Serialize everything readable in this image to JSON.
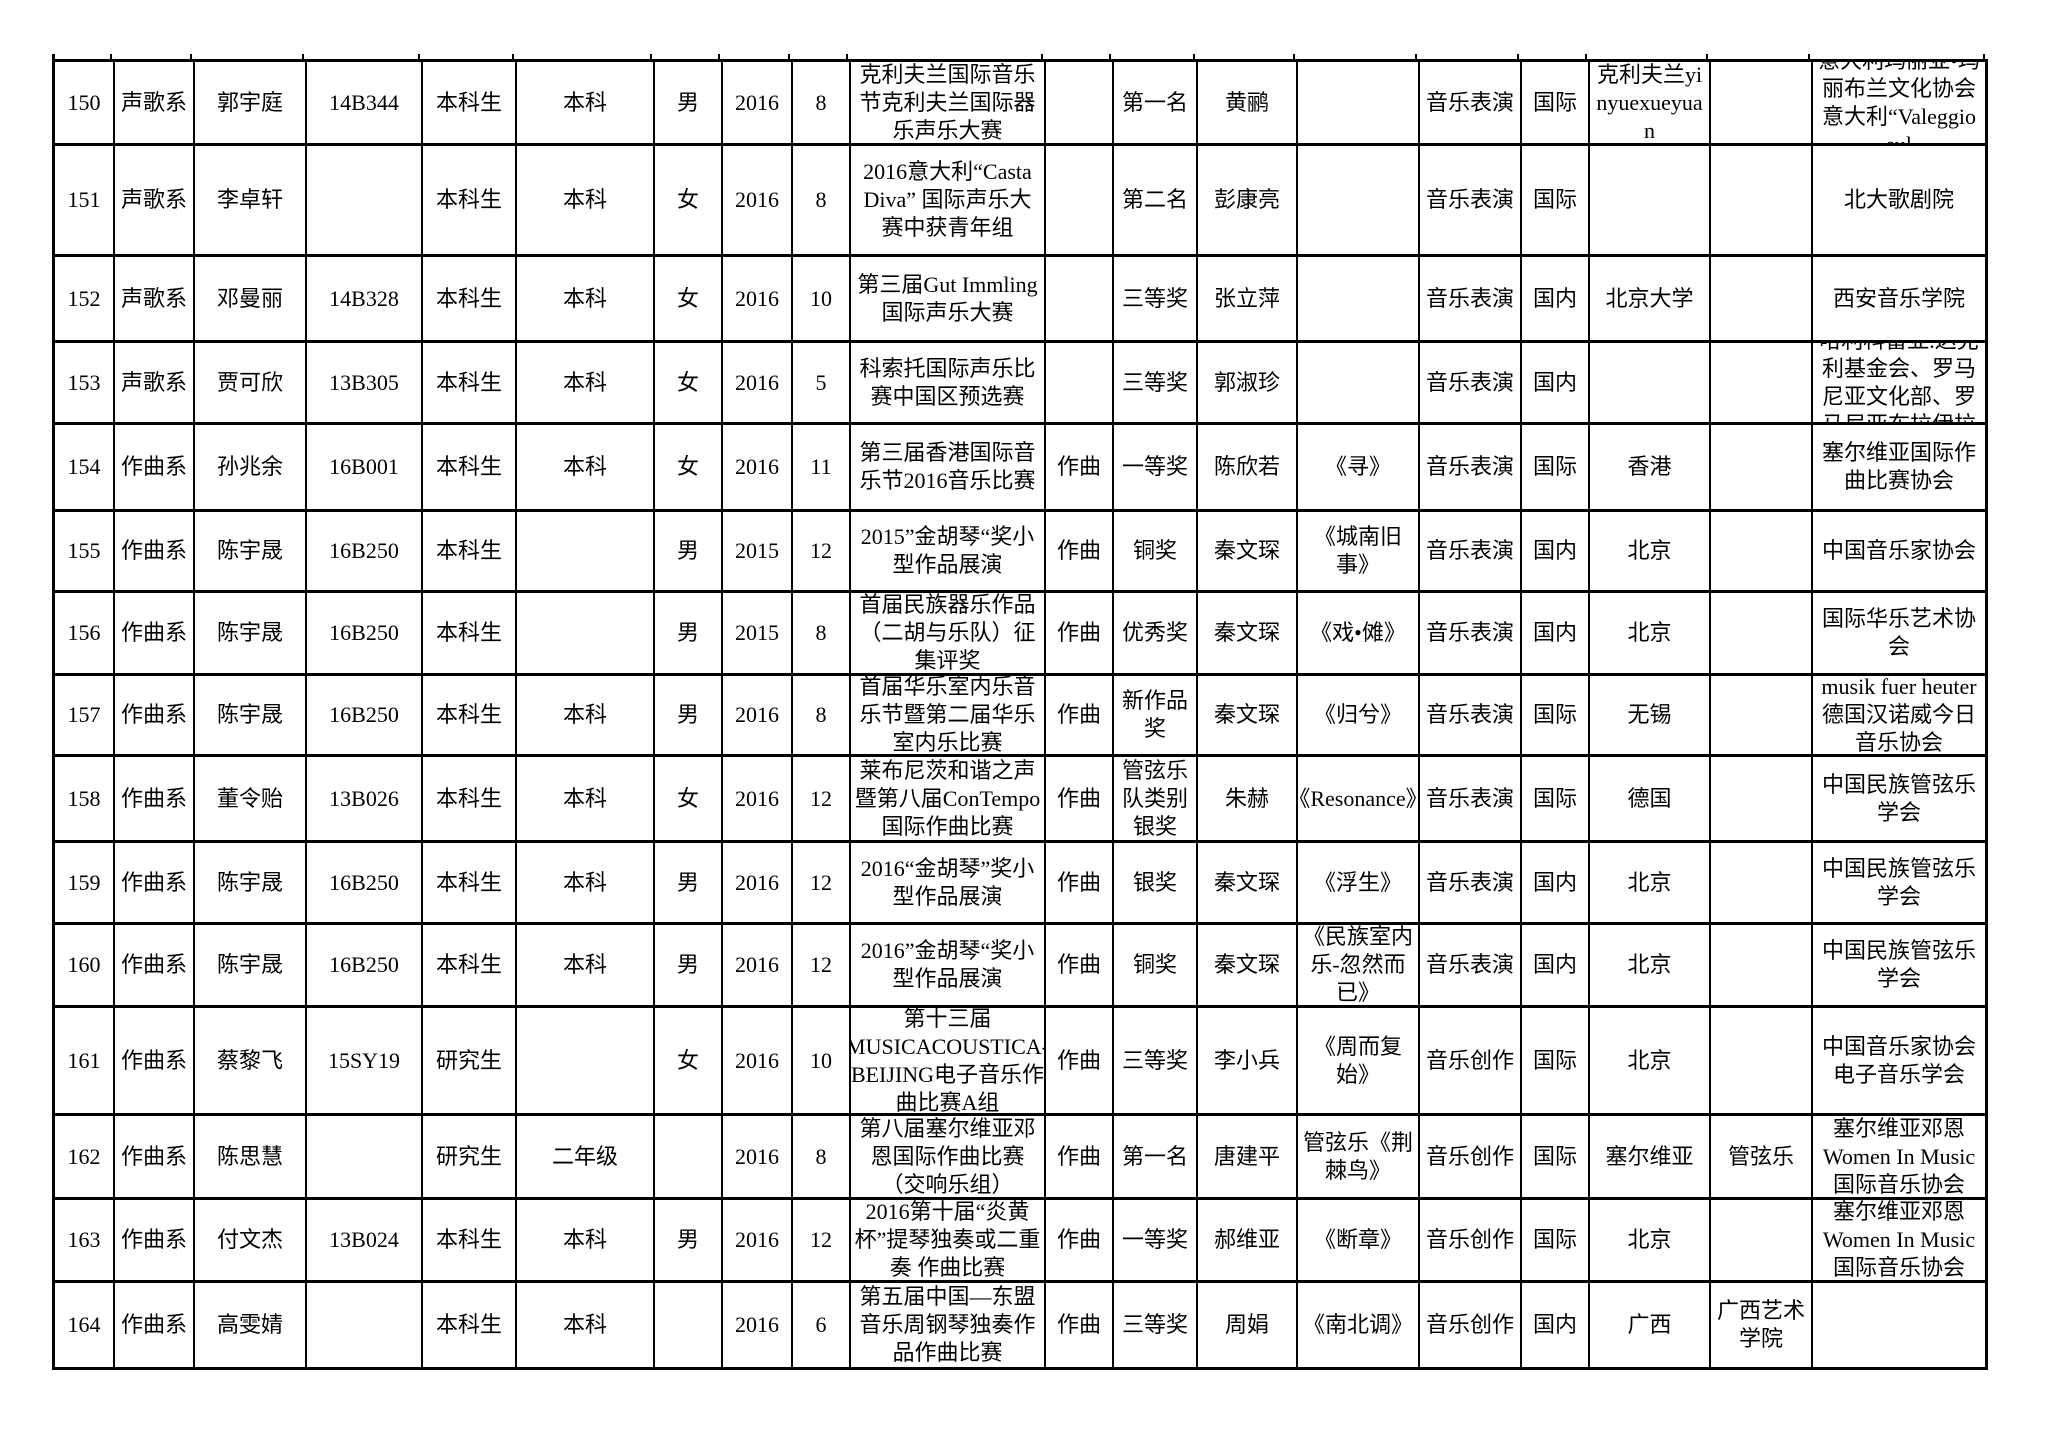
{
  "table": {
    "columns": [
      "row-no",
      "department",
      "student-name",
      "student-id",
      "student-type",
      "grade",
      "gender",
      "year",
      "month",
      "competition",
      "category",
      "award",
      "teacher",
      "work",
      "major",
      "scope",
      "location",
      "extra",
      "organizer"
    ],
    "rows": [
      [
        "150",
        "声歌系",
        "郭宇庭",
        "14B344",
        "本科生",
        "本科",
        "男",
        "2016",
        "8",
        "克利夫兰国际音乐节克利夫兰国际器乐声乐大赛",
        "",
        "第一名",
        "黄鹂",
        "",
        "音乐表演",
        "国际",
        "克利夫兰yinyuexueyuan",
        "",
        "意大利玛丽亚•玛丽布兰文化协会 意大利“Valeggio sul"
      ],
      [
        "151",
        "声歌系",
        "李卓轩",
        "",
        "本科生",
        "本科",
        "女",
        "2016",
        "8",
        "2016意大利“Casta Diva” 国际声乐大赛中获青年组",
        "",
        "第二名",
        "彭康亮",
        "",
        "音乐表演",
        "国际",
        "",
        "",
        "北大歌剧院"
      ],
      [
        "152",
        "声歌系",
        "邓曼丽",
        "14B328",
        "本科生",
        "本科",
        "女",
        "2016",
        "10",
        "第三届Gut Immling国际声乐大赛",
        "",
        "三等奖",
        "张立萍",
        "",
        "音乐表演",
        "国内",
        "北京大学",
        "",
        "西安音乐学院"
      ],
      [
        "153",
        "声歌系",
        "贾可欣",
        "13B305",
        "本科生",
        "本科",
        "女",
        "2016",
        "5",
        "科索托国际声乐比赛中国区预选赛",
        "",
        "三等奖",
        "郭淑珍",
        "",
        "音乐表演",
        "国内",
        "",
        "",
        "哈利科雷亚.达克利基金会、罗马尼亚文化部、罗马尼亚布拉伊拉"
      ],
      [
        "154",
        "作曲系",
        "孙兆余",
        "16B001",
        "本科生",
        "本科",
        "女",
        "2016",
        "11",
        "第三届香港国际音乐节2016音乐比赛",
        "作曲",
        "一等奖",
        "陈欣若",
        "《寻》",
        "音乐表演",
        "国际",
        "香港",
        "",
        "塞尔维亚国际作曲比赛协会"
      ],
      [
        "155",
        "作曲系",
        "陈宇晟",
        "16B250",
        "本科生",
        "",
        "男",
        "2015",
        "12",
        "2015”金胡琴“奖小型作品展演",
        "作曲",
        "铜奖",
        "秦文琛",
        "《城南旧事》",
        "音乐表演",
        "国内",
        "北京",
        "",
        "中国音乐家协会"
      ],
      [
        "156",
        "作曲系",
        "陈宇晟",
        "16B250",
        "本科生",
        "",
        "男",
        "2015",
        "8",
        "首届民族器乐作品（二胡与乐队）征集评奖",
        "作曲",
        "优秀奖",
        "秦文琛",
        "《戏•傩》",
        "音乐表演",
        "国内",
        "北京",
        "",
        "国际华乐艺术协会"
      ],
      [
        "157",
        "作曲系",
        "陈宇晟",
        "16B250",
        "本科生",
        "本科",
        "男",
        "2016",
        "8",
        "首届华乐室内乐音乐节暨第二届华乐室内乐比赛",
        "作曲",
        "新作品奖",
        "秦文琛",
        "《归兮》",
        "音乐表演",
        "国际",
        "无锡",
        "",
        "musik fuer heuter 德国汉诺威今日音乐协会"
      ],
      [
        "158",
        "作曲系",
        "董令贻",
        "13B026",
        "本科生",
        "本科",
        "女",
        "2016",
        "12",
        "莱布尼茨和谐之声暨第八届ConTempo国际作曲比赛",
        "作曲",
        "管弦乐队类别银奖",
        "朱赫",
        "《Resonance》",
        "音乐表演",
        "国际",
        "德国",
        "",
        "中国民族管弦乐学会"
      ],
      [
        "159",
        "作曲系",
        "陈宇晟",
        "16B250",
        "本科生",
        "本科",
        "男",
        "2016",
        "12",
        "2016“金胡琴”奖小型作品展演",
        "作曲",
        "银奖",
        "秦文琛",
        "《浮生》",
        "音乐表演",
        "国内",
        "北京",
        "",
        "中国民族管弦乐学会"
      ],
      [
        "160",
        "作曲系",
        "陈宇晟",
        "16B250",
        "本科生",
        "本科",
        "男",
        "2016",
        "12",
        "2016”金胡琴“奖小型作品展演",
        "作曲",
        "铜奖",
        "秦文琛",
        "《民族室内乐-忽然而已》",
        "音乐表演",
        "国内",
        "北京",
        "",
        "中国民族管弦乐学会"
      ],
      [
        "161",
        "作曲系",
        "蔡黎飞",
        "15SY19",
        "研究生",
        "",
        "女",
        "2016",
        "10",
        "第十三届MUSICACOUSTICA-BEIJING电子音乐作曲比赛A组",
        "作曲",
        "三等奖",
        "李小兵",
        "《周而复始》",
        "音乐创作",
        "国际",
        "北京",
        "",
        "中国音乐家协会电子音乐学会"
      ],
      [
        "162",
        "作曲系",
        "陈思慧",
        "",
        "研究生",
        "二年级",
        "",
        "2016",
        "8",
        "第八届塞尔维亚邓恩国际作曲比赛（交响乐组）",
        "作曲",
        "第一名",
        "唐建平",
        "管弦乐《荆棘鸟》",
        "音乐创作",
        "国际",
        "塞尔维亚",
        "管弦乐",
        "塞尔维亚邓恩Women In Music国际音乐协会"
      ],
      [
        "163",
        "作曲系",
        "付文杰",
        "13B024",
        "本科生",
        "本科",
        "男",
        "2016",
        "12",
        "2016第十届“炎黄杯”提琴独奏或二重奏 作曲比赛",
        "作曲",
        "一等奖",
        "郝维亚",
        "《断章》",
        "音乐创作",
        "国际",
        "北京",
        "",
        "塞尔维亚邓恩Women In Music国际音乐协会"
      ],
      [
        "164",
        "作曲系",
        "高雯婧",
        "",
        "本科生",
        "本科",
        "",
        "2016",
        "6",
        "第五届中国—东盟音乐周钢琴独奏作品作曲比赛",
        "作曲",
        "三等奖",
        "周娟",
        "《南北调》",
        "音乐创作",
        "国内",
        "广西",
        "广西艺术学院",
        ""
      ]
    ]
  }
}
